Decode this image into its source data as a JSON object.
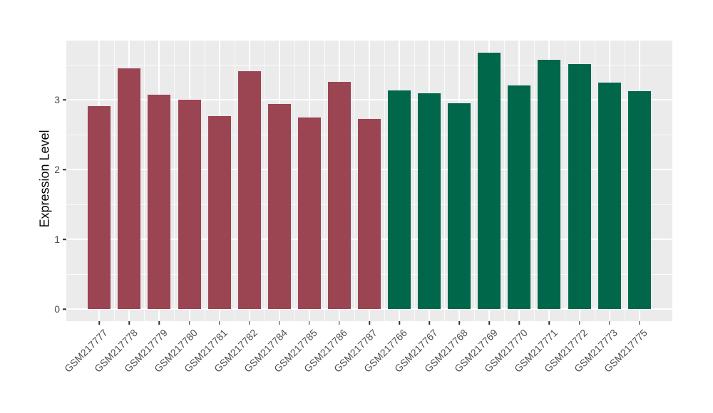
{
  "chart_data": {
    "type": "bar",
    "title": "",
    "xlabel": "",
    "ylabel": "Expression Level",
    "ylim": [
      0,
      3.84
    ],
    "yticks": [
      0,
      1,
      2,
      3
    ],
    "ytick_labels": [
      "0",
      "1",
      "2",
      "3"
    ],
    "grid": "on",
    "legend": "none",
    "categories": [
      "GSM217777",
      "GSM217778",
      "GSM217779",
      "GSM217780",
      "GSM217781",
      "GSM217782",
      "GSM217784",
      "GSM217785",
      "GSM217786",
      "GSM217787",
      "GSM217766",
      "GSM217767",
      "GSM217768",
      "GSM217769",
      "GSM217770",
      "GSM217771",
      "GSM217772",
      "GSM217773",
      "GSM217775"
    ],
    "values": [
      2.91,
      3.45,
      3.07,
      3.0,
      2.77,
      3.41,
      2.94,
      2.74,
      3.26,
      2.72,
      3.13,
      3.09,
      2.95,
      3.67,
      3.2,
      3.57,
      3.51,
      3.25,
      3.12
    ],
    "bar_colors": [
      "#9B4452",
      "#9B4452",
      "#9B4452",
      "#9B4452",
      "#9B4452",
      "#9B4452",
      "#9B4452",
      "#9B4452",
      "#9B4452",
      "#9B4452",
      "#00674B",
      "#00674B",
      "#00674B",
      "#00674B",
      "#00674B",
      "#00674B",
      "#00674B",
      "#00674B",
      "#00674B"
    ],
    "groups": [
      {
        "color": "#9B4452",
        "members": [
          "GSM217777",
          "GSM217778",
          "GSM217779",
          "GSM217780",
          "GSM217781",
          "GSM217782",
          "GSM217784",
          "GSM217785",
          "GSM217786",
          "GSM217787"
        ]
      },
      {
        "color": "#00674B",
        "members": [
          "GSM217766",
          "GSM217767",
          "GSM217768",
          "GSM217769",
          "GSM217770",
          "GSM217771",
          "GSM217772",
          "GSM217773",
          "GSM217775"
        ]
      }
    ],
    "colors": {
      "panel_background": "#EBEBEB",
      "figure_background": "#FFFFFF",
      "grid_major": "#FFFFFF",
      "axis_text": "#4D4D4D",
      "axis_title": "#000000",
      "tick_mark": "#333333"
    }
  }
}
